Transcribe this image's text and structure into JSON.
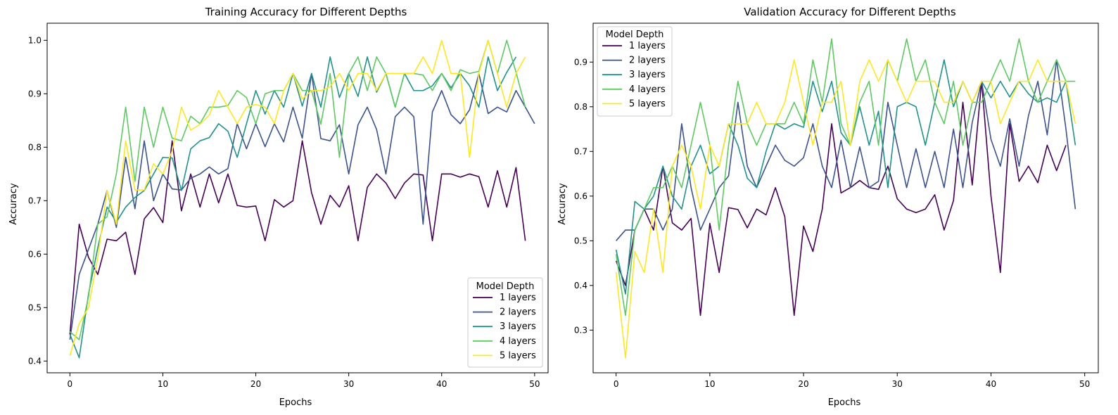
{
  "chart_data": [
    {
      "type": "line",
      "title": "Training Accuracy for Different Depths",
      "xlabel": "Epochs",
      "ylabel": "Accuracy",
      "xlim": [
        -2.45,
        51.45
      ],
      "ylim": [
        0.378,
        1.032
      ],
      "xticks": [
        0,
        10,
        20,
        30,
        40,
        50
      ],
      "yticks": [
        0.4,
        0.5,
        0.6,
        0.7,
        0.8,
        0.9,
        1.0
      ],
      "ytick_labels": [
        "0.4",
        "0.5",
        "0.6",
        "0.7",
        "0.8",
        "0.9",
        "1.0"
      ],
      "grid": false,
      "legend": {
        "title": "Model Depth",
        "placement": "lower-right"
      },
      "series": [
        {
          "name": "1 layers",
          "color": "#440154",
          "values": [
            0.45,
            0.656,
            0.594,
            0.562,
            0.628,
            0.625,
            0.641,
            0.562,
            0.666,
            0.687,
            0.659,
            0.812,
            0.681,
            0.75,
            0.688,
            0.75,
            0.696,
            0.75,
            0.691,
            0.688,
            0.69,
            0.625,
            0.702,
            0.688,
            0.7,
            0.812,
            0.715,
            0.656,
            0.71,
            0.688,
            0.728,
            0.625,
            0.725,
            0.75,
            0.733,
            0.704,
            0.733,
            0.75,
            0.748,
            0.625,
            0.75,
            0.75,
            0.744,
            0.75,
            0.745,
            0.688,
            0.756,
            0.688,
            0.762,
            0.625
          ]
        },
        {
          "name": "2 layers",
          "color": "#3b528b",
          "values": [
            0.44,
            0.562,
            0.609,
            0.656,
            0.719,
            0.65,
            0.781,
            0.685,
            0.812,
            0.7,
            0.75,
            0.722,
            0.72,
            0.742,
            0.75,
            0.763,
            0.75,
            0.76,
            0.844,
            0.797,
            0.844,
            0.801,
            0.844,
            0.81,
            0.875,
            0.817,
            0.938,
            0.816,
            0.812,
            0.842,
            0.75,
            0.842,
            0.875,
            0.833,
            0.75,
            0.857,
            0.875,
            0.857,
            0.656,
            0.866,
            0.906,
            0.861,
            0.844,
            0.87,
            0.938,
            0.863,
            0.875,
            0.866,
            0.906,
            0.875,
            0.844
          ]
        },
        {
          "name": "3 layers",
          "color": "#21918c",
          "values": [
            0.45,
            0.406,
            0.525,
            0.612,
            0.688,
            0.66,
            0.688,
            0.706,
            0.719,
            0.75,
            0.781,
            0.78,
            0.719,
            0.797,
            0.812,
            0.818,
            0.844,
            0.83,
            0.781,
            0.844,
            0.906,
            0.862,
            0.906,
            0.875,
            0.938,
            0.877,
            0.938,
            0.875,
            0.969,
            0.893,
            0.938,
            0.895,
            0.969,
            0.903,
            0.938,
            0.875,
            0.938,
            0.906,
            0.906,
            0.915,
            0.938,
            0.911,
            0.938,
            0.915,
            0.875,
            0.969,
            0.906,
            0.94,
            0.969
          ]
        },
        {
          "name": "4 layers",
          "color": "#5ec962",
          "values": [
            0.455,
            0.44,
            0.52,
            0.656,
            0.67,
            0.75,
            0.875,
            0.736,
            0.875,
            0.8,
            0.875,
            0.817,
            0.812,
            0.858,
            0.844,
            0.875,
            0.875,
            0.878,
            0.906,
            0.893,
            0.844,
            0.9,
            0.906,
            0.906,
            0.938,
            0.906,
            0.906,
            0.843,
            0.938,
            0.781,
            0.938,
            0.969,
            0.906,
            0.969,
            0.938,
            0.875,
            0.938,
            0.938,
            0.935,
            0.906,
            0.938,
            0.906,
            0.945,
            0.938,
            0.942,
            1.0,
            0.938,
            1.0,
            0.94,
            0.875
          ]
        },
        {
          "name": "5 layers",
          "color": "#fde725",
          "values": [
            0.41,
            0.47,
            0.5,
            0.594,
            0.719,
            0.656,
            0.812,
            0.72,
            0.72,
            0.769,
            0.75,
            0.793,
            0.875,
            0.832,
            0.843,
            0.86,
            0.906,
            0.875,
            0.844,
            0.875,
            0.88,
            0.875,
            0.844,
            0.906,
            0.938,
            0.89,
            0.906,
            0.906,
            0.913,
            0.938,
            0.906,
            0.938,
            0.938,
            0.906,
            0.938,
            0.938,
            0.938,
            0.938,
            0.969,
            0.938,
            1.0,
            0.938,
            0.938,
            0.781,
            0.938,
            1.0,
            0.938,
            0.875,
            0.938,
            0.969
          ]
        }
      ]
    },
    {
      "type": "line",
      "title": "Validation Accuracy for Different Depths",
      "xlabel": "Epochs",
      "ylabel": "Accuracy",
      "xlim": [
        -2.45,
        51.45
      ],
      "ylim": [
        0.2045,
        0.987
      ],
      "xticks": [
        0,
        10,
        20,
        30,
        40,
        50
      ],
      "yticks": [
        0.3,
        0.4,
        0.5,
        0.6,
        0.7,
        0.8,
        0.9
      ],
      "ytick_labels": [
        "0.3",
        "0.4",
        "0.5",
        "0.6",
        "0.7",
        "0.8",
        "0.9"
      ],
      "grid": false,
      "legend": {
        "title": "Model Depth",
        "placement": "upper-left"
      },
      "series": [
        {
          "name": "1 layers",
          "color": "#440154",
          "values": [
            0.455,
            0.4,
            0.524,
            0.571,
            0.524,
            0.667,
            0.54,
            0.524,
            0.55,
            0.333,
            0.539,
            0.429,
            0.574,
            0.57,
            0.529,
            0.571,
            0.558,
            0.619,
            0.554,
            0.333,
            0.533,
            0.476,
            0.571,
            0.762,
            0.607,
            0.619,
            0.635,
            0.619,
            0.615,
            0.667,
            0.594,
            0.571,
            0.563,
            0.571,
            0.603,
            0.524,
            0.59,
            0.81,
            0.625,
            0.857,
            0.6,
            0.429,
            0.762,
            0.633,
            0.667,
            0.63,
            0.714,
            0.657,
            0.714
          ]
        },
        {
          "name": "2 layers",
          "color": "#3b528b",
          "values": [
            0.5,
            0.524,
            0.524,
            0.571,
            0.571,
            0.524,
            0.571,
            0.762,
            0.619,
            0.524,
            0.571,
            0.619,
            0.645,
            0.81,
            0.667,
            0.619,
            0.667,
            0.714,
            0.68,
            0.667,
            0.686,
            0.762,
            0.667,
            0.619,
            0.725,
            0.619,
            0.71,
            0.619,
            0.633,
            0.81,
            0.714,
            0.619,
            0.706,
            0.619,
            0.7,
            0.619,
            0.75,
            0.619,
            0.765,
            0.857,
            0.727,
            0.667,
            0.773,
            0.667,
            0.78,
            0.857,
            0.737,
            0.905,
            0.75,
            0.571
          ]
        },
        {
          "name": "3 layers",
          "color": "#21918c",
          "values": [
            0.48,
            0.381,
            0.588,
            0.571,
            0.6,
            0.667,
            0.6,
            0.571,
            0.667,
            0.714,
            0.65,
            0.667,
            0.762,
            0.714,
            0.64,
            0.619,
            0.7,
            0.762,
            0.75,
            0.762,
            0.754,
            0.857,
            0.789,
            0.857,
            0.742,
            0.714,
            0.8,
            0.714,
            0.79,
            0.619,
            0.8,
            0.81,
            0.8,
            0.714,
            0.81,
            0.905,
            0.8,
            0.857,
            0.81,
            0.857,
            0.82,
            0.857,
            0.822,
            0.857,
            0.829,
            0.81,
            0.82,
            0.81,
            0.857,
            0.714
          ]
        },
        {
          "name": "4 layers",
          "color": "#5ec962",
          "values": [
            0.47,
            0.333,
            0.524,
            0.571,
            0.619,
            0.619,
            0.667,
            0.619,
            0.714,
            0.81,
            0.714,
            0.524,
            0.714,
            0.857,
            0.762,
            0.714,
            0.762,
            0.762,
            0.762,
            0.81,
            0.762,
            0.905,
            0.81,
            0.952,
            0.762,
            0.714,
            0.81,
            0.857,
            0.714,
            0.905,
            0.857,
            0.952,
            0.857,
            0.905,
            0.81,
            0.762,
            0.857,
            0.714,
            0.81,
            0.81,
            0.857,
            0.905,
            0.857,
            0.952,
            0.857,
            0.81,
            0.857,
            0.905,
            0.857,
            0.857
          ]
        },
        {
          "name": "5 layers",
          "color": "#fde725",
          "values": [
            0.43,
            0.238,
            0.476,
            0.429,
            0.571,
            0.429,
            0.667,
            0.714,
            0.667,
            0.571,
            0.714,
            0.667,
            0.762,
            0.762,
            0.762,
            0.81,
            0.762,
            0.762,
            0.81,
            0.905,
            0.81,
            0.714,
            0.81,
            0.81,
            0.857,
            0.714,
            0.857,
            0.905,
            0.857,
            0.905,
            0.857,
            0.81,
            0.857,
            0.857,
            0.857,
            0.81,
            0.81,
            0.857,
            0.81,
            0.857,
            0.857,
            0.762,
            0.81,
            0.857,
            0.857,
            0.905,
            0.857,
            0.857,
            0.857,
            0.762
          ]
        }
      ]
    }
  ]
}
